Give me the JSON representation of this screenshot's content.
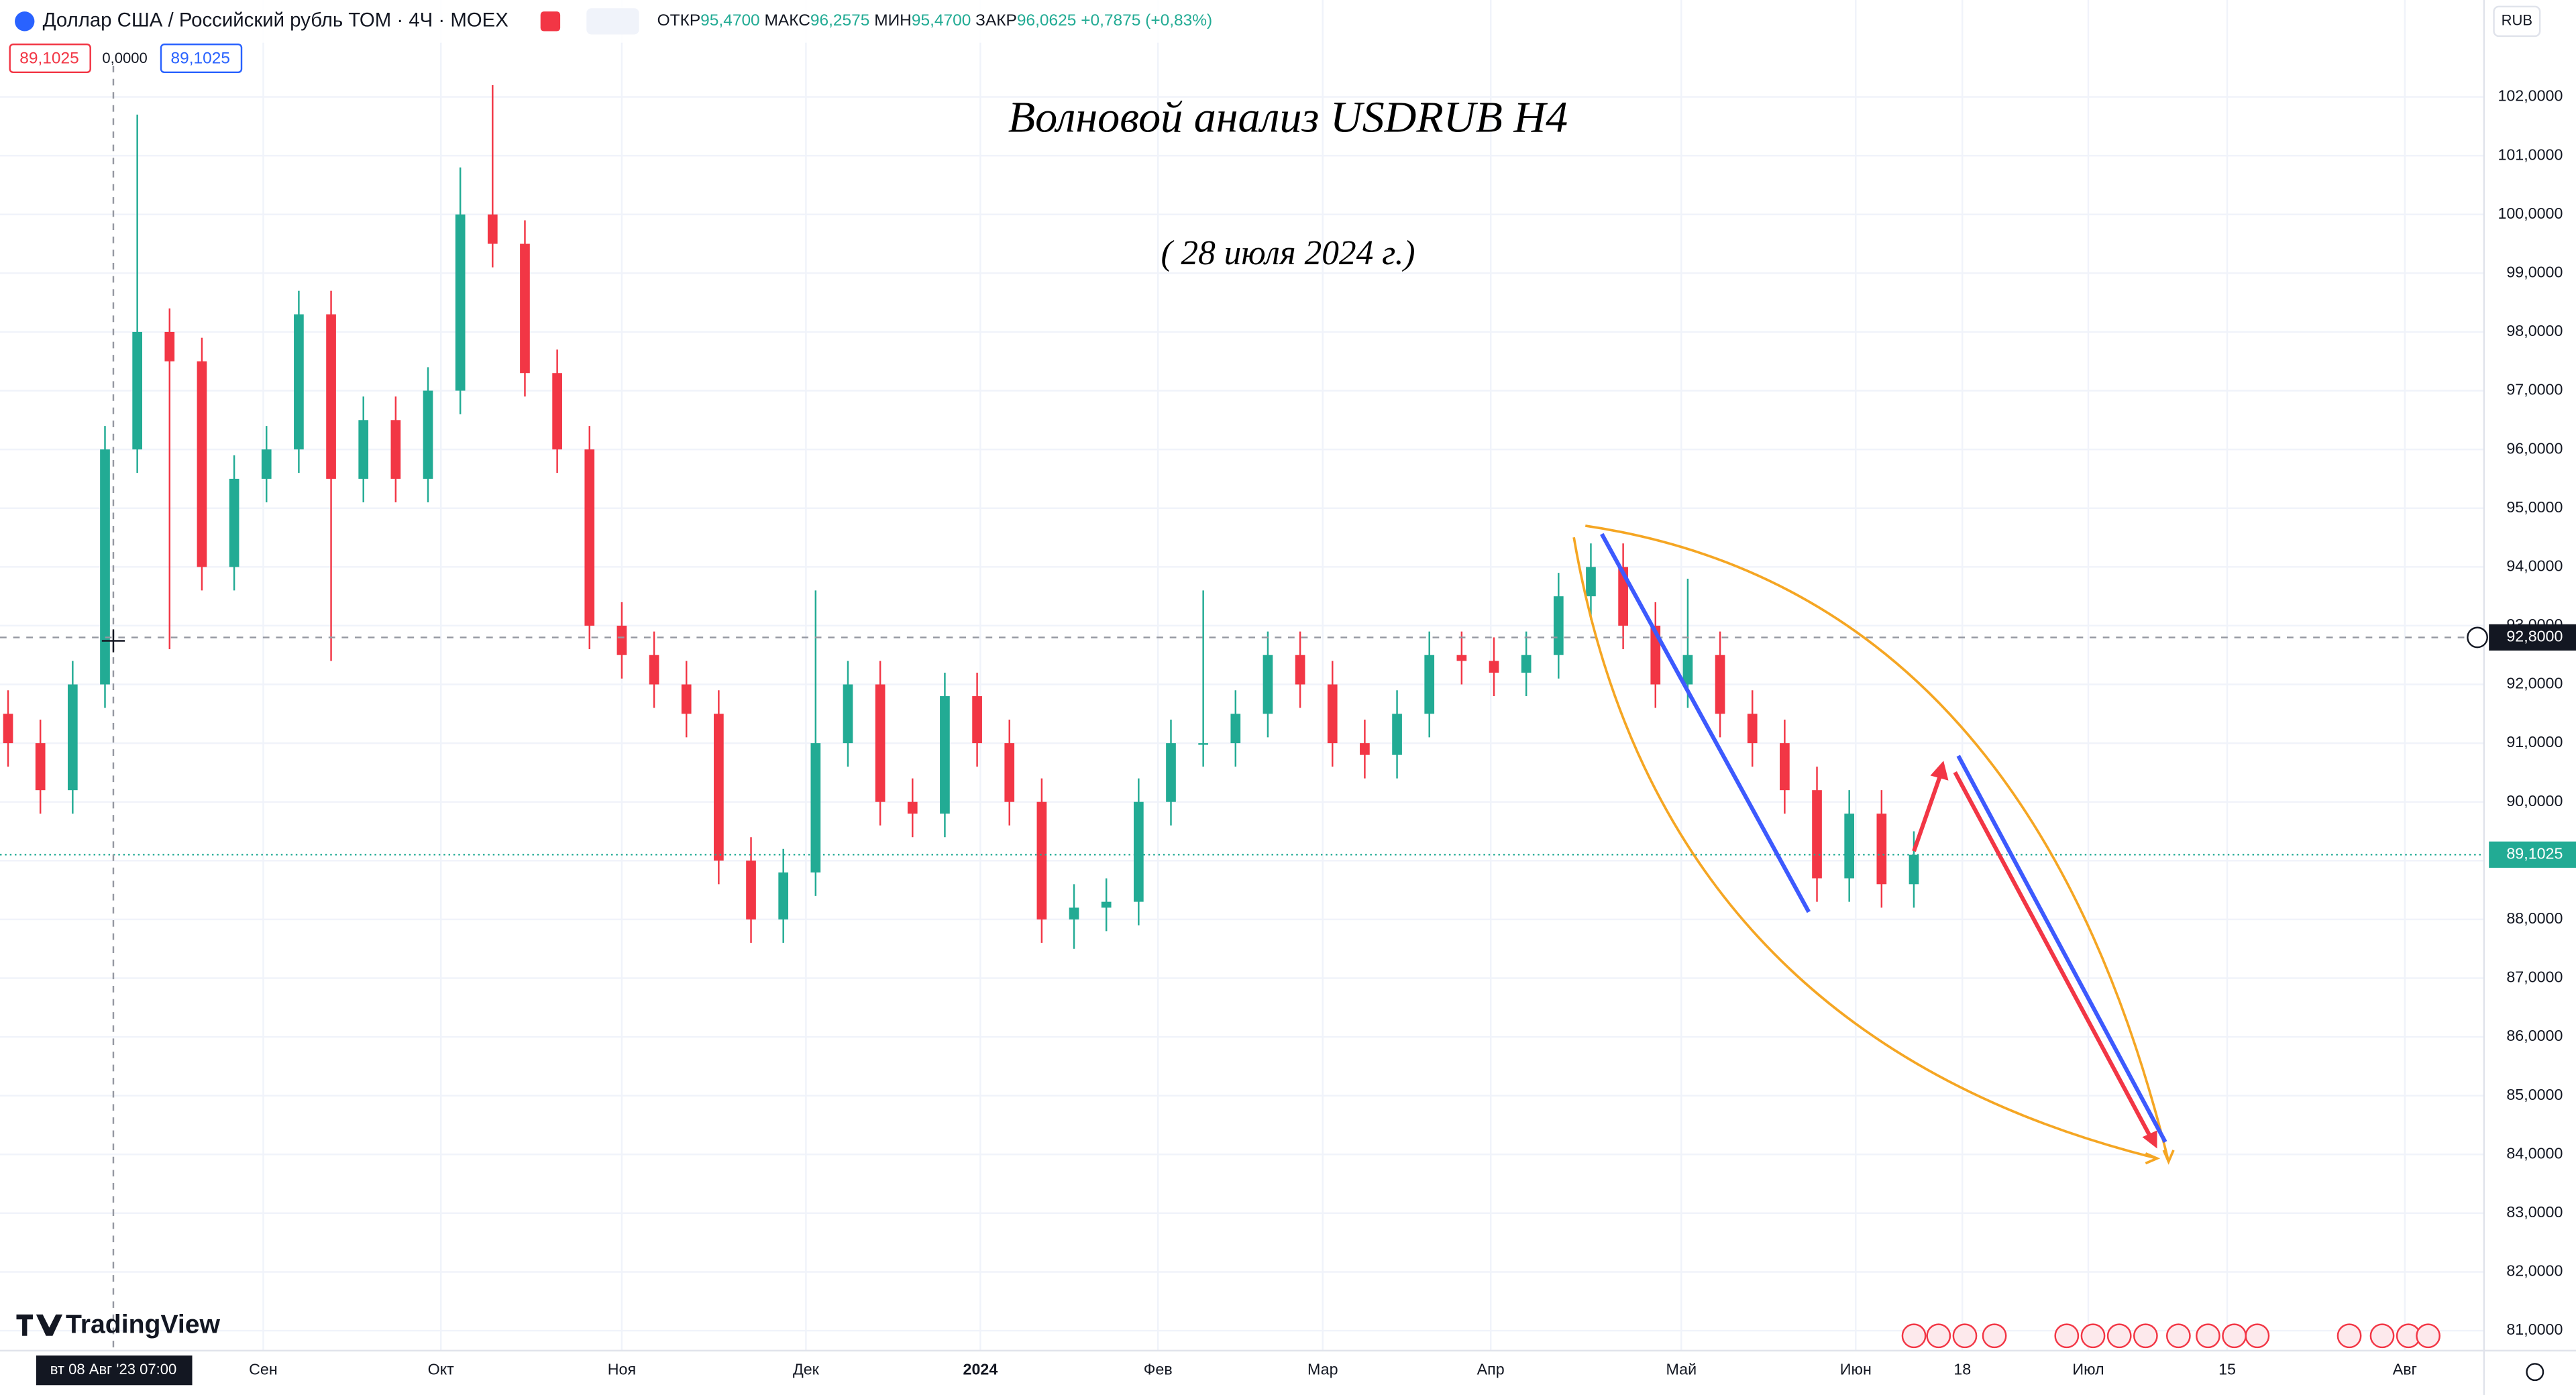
{
  "header": {
    "symbol": "Доллар США / Российский рубль ТОМ · 4Ч · MOEX",
    "ohlc": [
      {
        "label": "ОТКР",
        "value": "95,4700"
      },
      {
        "label": "МАКС",
        "value": "96,2575"
      },
      {
        "label": "МИН",
        "value": "95,4700"
      },
      {
        "label": "ЗАКР",
        "value": "96,0625"
      }
    ],
    "change": "+0,7875 (+0,83%)",
    "price_left": "89,1025",
    "spread": "0,0000",
    "price_right": "89,1025",
    "currency": "RUB"
  },
  "watermark": "TradingView",
  "chart_data": {
    "type": "candlestick",
    "title": "Волновой анализ USDRUB H4",
    "subtitle": "( 28 июля 2024 г.)",
    "up_color": "#22ab94",
    "down_color": "#f23645",
    "open": [
      91.5,
      91.0,
      90.2,
      92.0,
      96.0,
      98.0,
      97.5,
      94.0,
      95.5,
      96.0,
      98.3,
      95.5,
      96.5,
      95.5,
      97.0,
      100.0,
      99.5,
      97.3,
      96.0,
      93.0,
      92.5,
      92.0,
      91.5,
      89.0,
      88.0,
      88.8,
      91.0,
      92.0,
      90.0,
      89.8,
      91.8,
      91.0,
      90.0,
      88.0,
      88.2,
      88.3,
      90.0,
      91.0,
      91.0,
      91.5,
      92.5,
      92.0,
      91.0,
      90.8,
      91.5,
      92.5,
      92.4,
      92.2,
      92.5,
      93.5,
      94.0,
      93.0,
      92.0,
      92.5,
      91.5,
      91.0,
      90.2,
      88.7,
      89.8,
      88.6
    ],
    "high": [
      91.9,
      91.4,
      92.4,
      96.4,
      101.7,
      98.4,
      97.9,
      95.9,
      96.4,
      98.7,
      98.7,
      96.9,
      96.9,
      97.4,
      100.8,
      102.2,
      99.9,
      97.7,
      96.4,
      93.4,
      92.9,
      92.4,
      91.9,
      89.4,
      89.2,
      93.6,
      92.4,
      92.4,
      90.4,
      92.2,
      92.2,
      91.4,
      90.4,
      88.6,
      88.7,
      90.4,
      91.4,
      93.6,
      91.9,
      92.9,
      92.9,
      92.4,
      91.4,
      91.9,
      92.9,
      92.9,
      92.8,
      92.9,
      93.9,
      94.4,
      94.4,
      93.4,
      93.8,
      92.9,
      91.9,
      91.4,
      90.6,
      90.2,
      90.2,
      89.5
    ],
    "low": [
      90.6,
      89.8,
      89.8,
      91.6,
      95.6,
      92.6,
      93.6,
      93.6,
      95.1,
      95.6,
      92.4,
      95.1,
      95.1,
      95.1,
      96.6,
      99.1,
      96.9,
      95.6,
      92.6,
      92.1,
      91.6,
      91.1,
      88.6,
      87.6,
      87.6,
      88.4,
      90.6,
      89.6,
      89.4,
      89.4,
      90.6,
      89.6,
      87.6,
      87.5,
      87.8,
      87.9,
      89.6,
      90.6,
      90.6,
      91.1,
      91.6,
      90.6,
      90.4,
      90.4,
      91.1,
      92.0,
      91.8,
      91.8,
      92.1,
      93.1,
      92.6,
      91.6,
      91.6,
      91.1,
      90.6,
      89.8,
      88.3,
      88.3,
      88.2,
      88.2
    ],
    "close": [
      91.0,
      90.2,
      92.0,
      96.0,
      98.0,
      97.5,
      94.0,
      95.5,
      96.0,
      98.3,
      95.5,
      96.5,
      95.5,
      97.0,
      100.0,
      99.5,
      97.3,
      96.0,
      93.0,
      92.5,
      92.0,
      91.5,
      89.0,
      88.0,
      88.8,
      91.0,
      92.0,
      90.0,
      89.8,
      91.8,
      91.0,
      90.0,
      88.0,
      88.2,
      88.3,
      90.0,
      91.0,
      91.0,
      91.5,
      92.5,
      92.0,
      91.0,
      90.8,
      91.5,
      92.5,
      92.4,
      92.2,
      92.5,
      93.5,
      94.0,
      93.0,
      92.0,
      92.5,
      91.5,
      91.0,
      90.2,
      88.7,
      89.8,
      88.6,
      89.1
    ],
    "xlim": [
      -0.25,
      76.65
    ],
    "xticks": [
      {
        "value": 7.9,
        "label": "Сен"
      },
      {
        "value": 13.4,
        "label": "Окт"
      },
      {
        "value": 19.0,
        "label": "Ноя"
      },
      {
        "value": 24.7,
        "label": "Дек"
      },
      {
        "value": 30.1,
        "label": "2024"
      },
      {
        "value": 35.6,
        "label": "Фев"
      },
      {
        "value": 40.7,
        "label": "Мар"
      },
      {
        "value": 45.9,
        "label": "Апр"
      },
      {
        "value": 51.8,
        "label": "Май"
      },
      {
        "value": 57.2,
        "label": "Июн"
      },
      {
        "value": 60.5,
        "label": "18"
      },
      {
        "value": 64.4,
        "label": "Июл"
      },
      {
        "value": 68.7,
        "label": "15"
      },
      {
        "value": 74.2,
        "label": "Авг"
      }
    ],
    "ylim": [
      80.66,
      103.65
    ],
    "yticks": [
      {
        "value": 81,
        "label": "81,0000"
      },
      {
        "value": 82,
        "label": "82,0000"
      },
      {
        "value": 83,
        "label": "83,0000"
      },
      {
        "value": 84,
        "label": "84,0000"
      },
      {
        "value": 85,
        "label": "85,0000"
      },
      {
        "value": 86,
        "label": "86,0000"
      },
      {
        "value": 87,
        "label": "87,0000"
      },
      {
        "value": 88,
        "label": "88,0000"
      },
      {
        "value": 89,
        "label": "89,0000"
      },
      {
        "value": 90,
        "label": "90,0000"
      },
      {
        "value": 91,
        "label": "91,0000"
      },
      {
        "value": 92,
        "label": "92,0000"
      },
      {
        "value": 93,
        "label": "93,0000"
      },
      {
        "value": 94,
        "label": "94,0000"
      },
      {
        "value": 95,
        "label": "95,0000"
      },
      {
        "value": 96,
        "label": "96,0000"
      },
      {
        "value": 97,
        "label": "97,0000"
      },
      {
        "value": 98,
        "label": "98,0000"
      },
      {
        "value": 99,
        "label": "99,0000"
      },
      {
        "value": 100,
        "label": "100,0000"
      },
      {
        "value": 101,
        "label": "101,0000"
      },
      {
        "value": 102,
        "label": "102,0000"
      }
    ],
    "grid": true,
    "crosshair": {
      "value": 92.8,
      "label": "92,8000",
      "time_label": "вт 08 Авг '23 07:00"
    },
    "last_price": {
      "value": 89.1025,
      "label": "89,1025"
    }
  }
}
